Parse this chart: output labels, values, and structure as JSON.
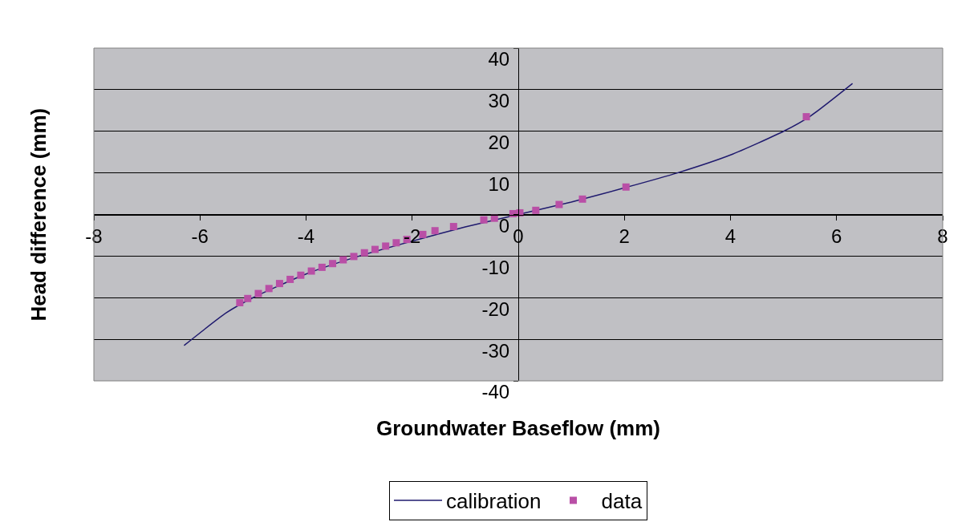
{
  "chart_data": {
    "type": "scatter",
    "xlabel": "Groundwater Baseflow (mm)",
    "ylabel": "Head difference (mm)",
    "xlim": [
      -8,
      8
    ],
    "xticks": [
      -8,
      -6,
      -4,
      -2,
      0,
      2,
      4,
      6,
      8
    ],
    "ylim": [
      -40,
      40
    ],
    "yticks": [
      -40,
      -30,
      -20,
      -10,
      0,
      10,
      20,
      30,
      40
    ],
    "grid": "y",
    "legend": "bottom",
    "series": [
      {
        "name": "calibration",
        "type": "line",
        "color": "#1f1a6e",
        "marker": "none",
        "line_style": "solid",
        "x": [
          -6.3,
          -5.5,
          -5,
          -4,
          -3,
          -2,
          -1,
          0,
          1,
          2,
          3,
          4,
          5,
          5.5,
          6.3
        ],
        "values": [
          -31.5,
          -23.6,
          -20,
          -14.3,
          -10,
          -6.4,
          -3,
          0,
          3,
          6.4,
          10,
          14.3,
          20,
          23.6,
          31.5
        ]
      },
      {
        "name": "data",
        "type": "scatter",
        "color": "#b94fa6",
        "marker": "square",
        "x": [
          -5.25,
          -5.1,
          -4.9,
          -4.7,
          -4.5,
          -4.3,
          -4.1,
          -3.9,
          -3.7,
          -3.5,
          -3.3,
          -3.1,
          -2.9,
          -2.7,
          -2.5,
          -2.3,
          -2.1,
          -1.8,
          -1.57,
          -1.22,
          -0.65,
          -0.45,
          -0.1,
          0.03,
          0.33,
          0.77,
          1.21,
          2.03,
          5.43
        ],
        "values": [
          -21.2,
          -20.2,
          -19,
          -17.8,
          -16.6,
          -15.6,
          -14.6,
          -13.6,
          -12.7,
          -11.8,
          -10.9,
          -10.1,
          -9.2,
          -8.4,
          -7.6,
          -6.8,
          -6,
          -4.8,
          -3.9,
          -2.9,
          -1.3,
          -0.9,
          0.2,
          0.4,
          1,
          2.4,
          3.7,
          6.6,
          23.5
        ]
      }
    ]
  }
}
